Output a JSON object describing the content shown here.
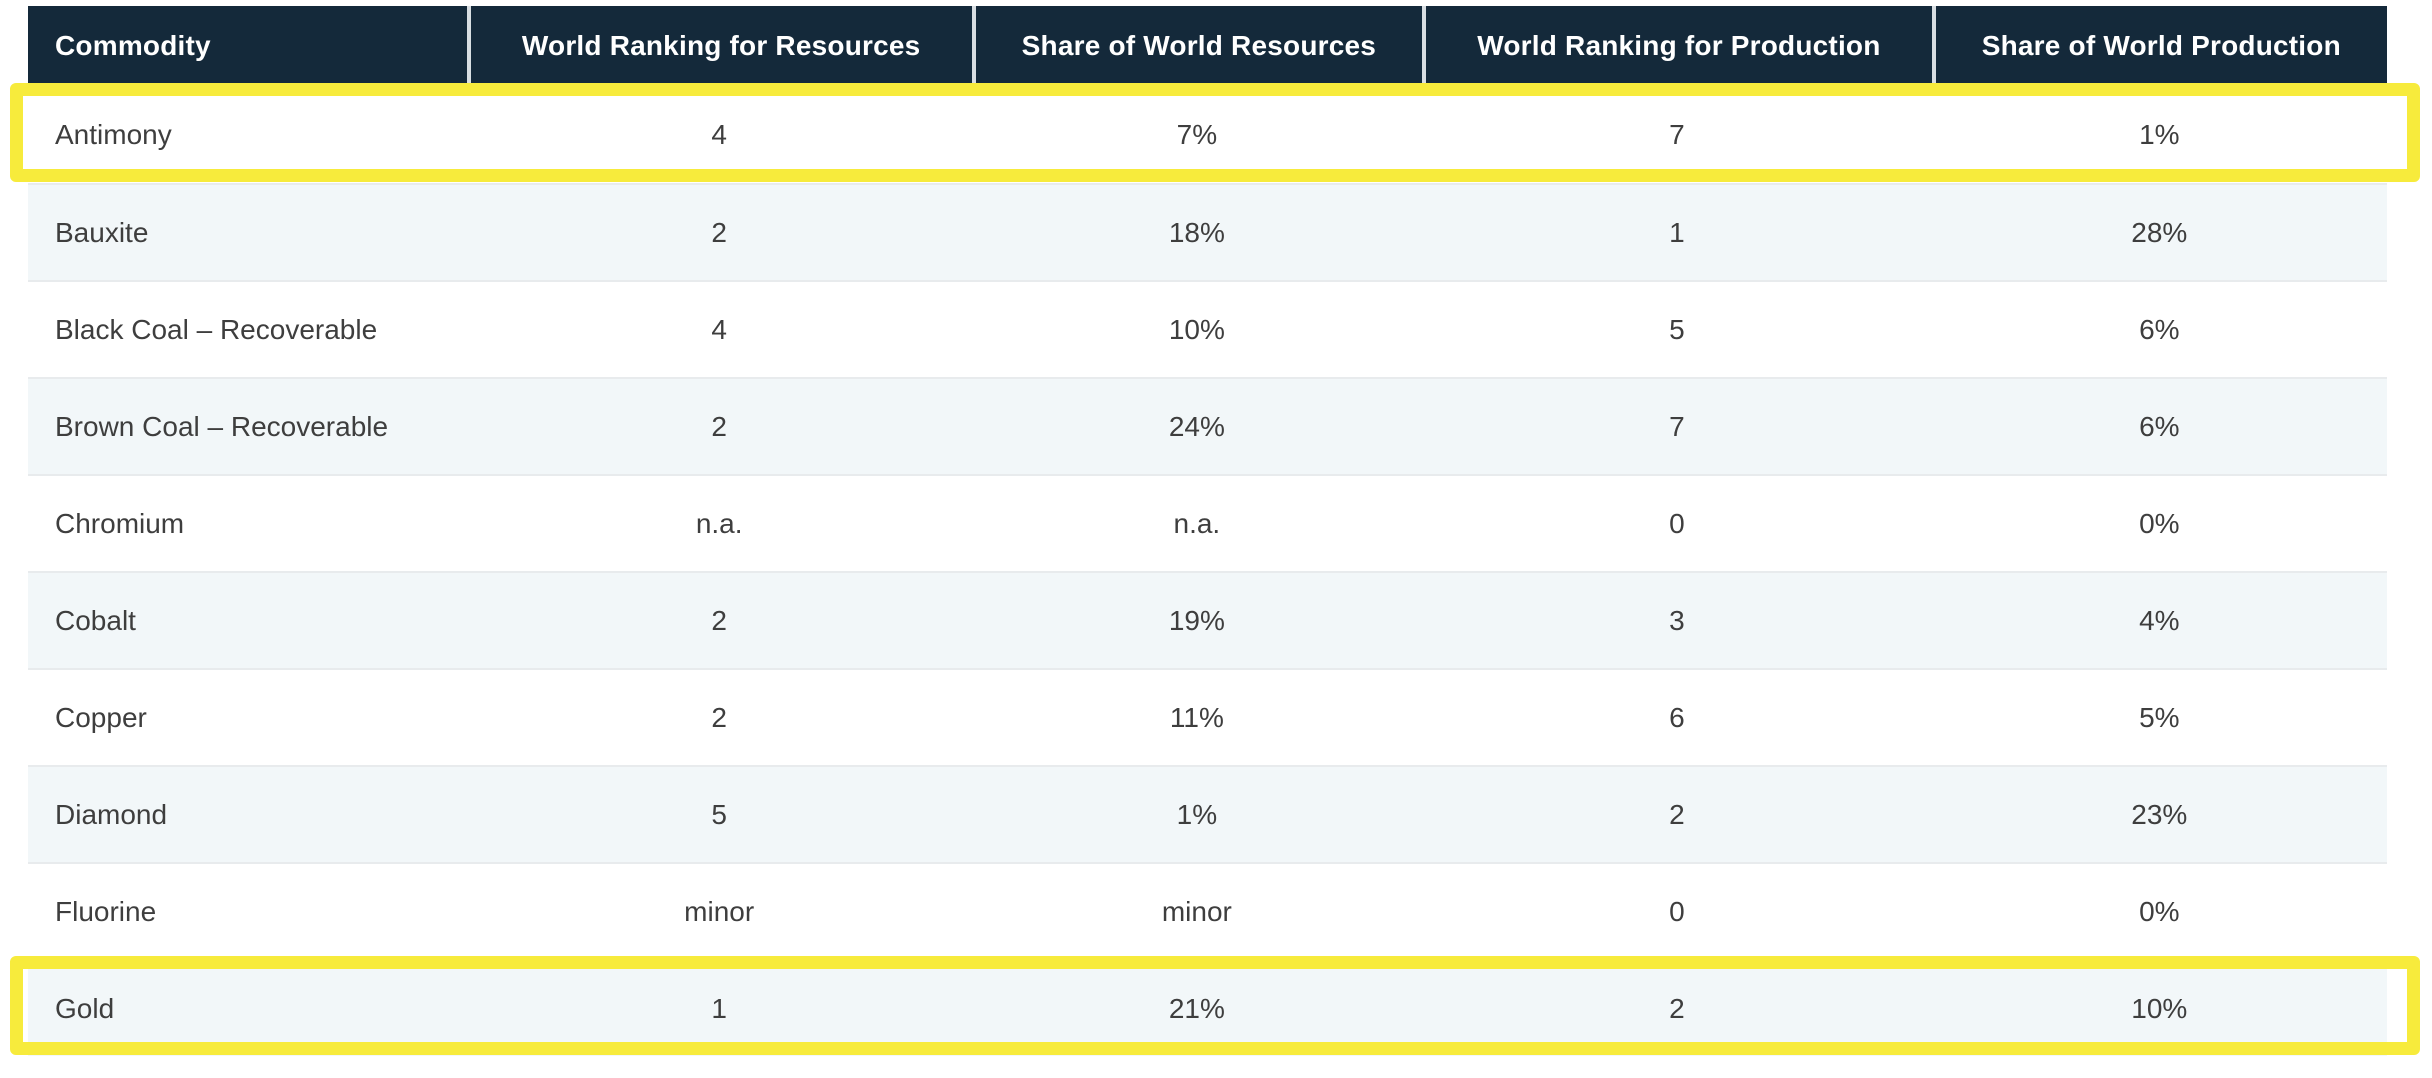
{
  "table": {
    "columns": [
      "Commodity",
      "World Ranking for Resources",
      "Share of World Resources",
      "World Ranking for Production",
      "Share of World Production"
    ],
    "rows": [
      {
        "cells": [
          "Antimony",
          "4",
          "7%",
          "7",
          "1%"
        ],
        "highlighted": true
      },
      {
        "cells": [
          "Bauxite",
          "2",
          "18%",
          "1",
          "28%"
        ],
        "highlighted": false
      },
      {
        "cells": [
          "Black Coal – Recoverable",
          "4",
          "10%",
          "5",
          "6%"
        ],
        "highlighted": false
      },
      {
        "cells": [
          "Brown Coal – Recoverable",
          "2",
          "24%",
          "7",
          "6%"
        ],
        "highlighted": false
      },
      {
        "cells": [
          "Chromium",
          "n.a.",
          "n.a.",
          "0",
          "0%"
        ],
        "highlighted": false
      },
      {
        "cells": [
          "Cobalt",
          "2",
          "19%",
          "3",
          "4%"
        ],
        "highlighted": false
      },
      {
        "cells": [
          "Copper",
          "2",
          "11%",
          "6",
          "5%"
        ],
        "highlighted": false
      },
      {
        "cells": [
          "Diamond",
          "5",
          "1%",
          "2",
          "23%"
        ],
        "highlighted": false
      },
      {
        "cells": [
          "Fluorine",
          "minor",
          "minor",
          "0",
          "0%"
        ],
        "highlighted": false
      },
      {
        "cells": [
          "Gold",
          "1",
          "21%",
          "2",
          "10%"
        ],
        "highlighted": true
      }
    ]
  },
  "highlights": {
    "rows": [
      "Antimony",
      "Gold"
    ],
    "color": "#f7eb3c"
  },
  "colors": {
    "header_background": "#14293a",
    "header_text": "#ffffff",
    "row_alt_background": "#f2f7f9",
    "row_background": "#ffffff",
    "body_text": "#3e3e3e",
    "row_divider": "#e8ebed",
    "header_divider": "#d8dee2"
  },
  "chart_data": {
    "type": "table",
    "title": "",
    "columns": [
      "Commodity",
      "World Ranking for Resources",
      "Share of World Resources",
      "World Ranking for Production",
      "Share of World Production"
    ],
    "rows": [
      [
        "Antimony",
        "4",
        "7%",
        "7",
        "1%"
      ],
      [
        "Bauxite",
        "2",
        "18%",
        "1",
        "28%"
      ],
      [
        "Black Coal – Recoverable",
        "4",
        "10%",
        "5",
        "6%"
      ],
      [
        "Brown Coal – Recoverable",
        "2",
        "24%",
        "7",
        "6%"
      ],
      [
        "Chromium",
        "n.a.",
        "n.a.",
        "0",
        "0%"
      ],
      [
        "Cobalt",
        "2",
        "19%",
        "3",
        "4%"
      ],
      [
        "Copper",
        "2",
        "11%",
        "6",
        "5%"
      ],
      [
        "Diamond",
        "5",
        "1%",
        "2",
        "23%"
      ],
      [
        "Fluorine",
        "minor",
        "minor",
        "0",
        "0%"
      ],
      [
        "Gold",
        "1",
        "21%",
        "2",
        "10%"
      ]
    ],
    "annotations": [
      "Antimony row highlighted in yellow",
      "Gold row highlighted in yellow"
    ]
  }
}
